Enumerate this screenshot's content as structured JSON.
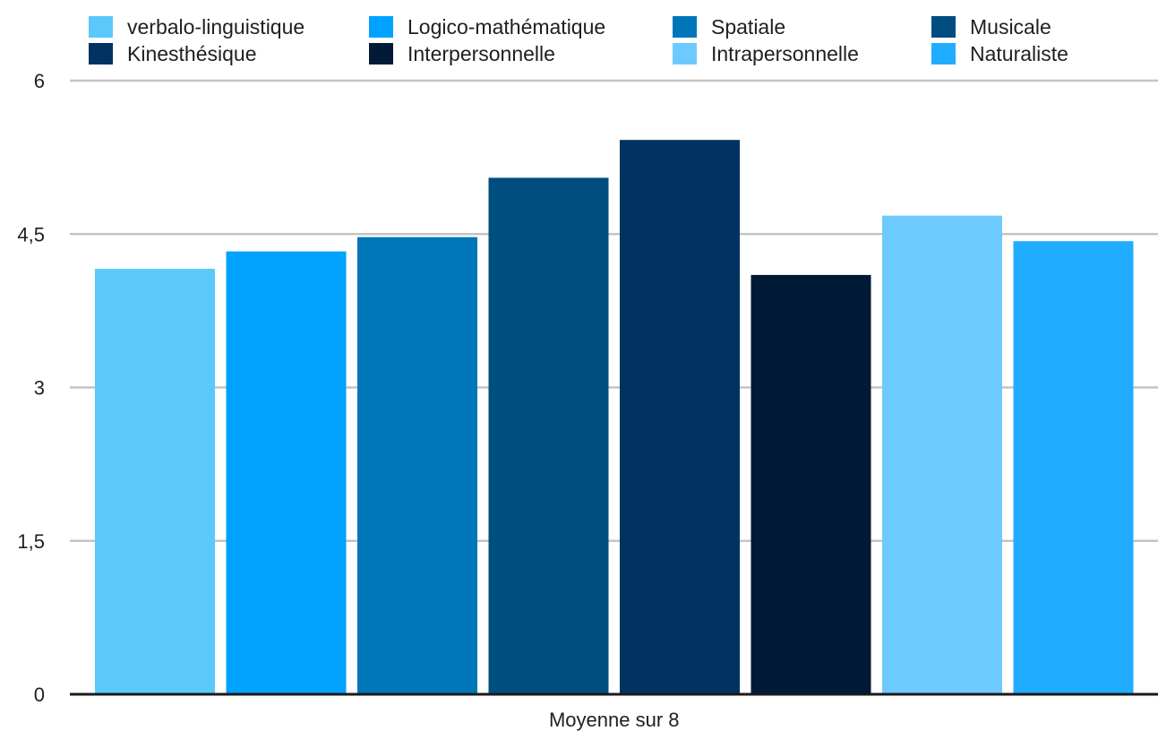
{
  "chart_data": {
    "type": "bar",
    "categories": [
      "Moyenne sur 8"
    ],
    "series": [
      {
        "name": "verbalo-linguistique",
        "values": [
          4.16
        ],
        "color": "#5AC8FA"
      },
      {
        "name": "Logico-mathématique",
        "values": [
          4.33
        ],
        "color": "#00A2FF"
      },
      {
        "name": "Spatiale",
        "values": [
          4.47
        ],
        "color": "#0076BA"
      },
      {
        "name": "Musicale",
        "values": [
          5.05
        ],
        "color": "#004D80"
      },
      {
        "name": "Kinesthésique",
        "values": [
          5.42
        ],
        "color": "#003360"
      },
      {
        "name": "Interpersonnelle",
        "values": [
          4.1
        ],
        "color": "#001A38"
      },
      {
        "name": "Intrapersonnelle",
        "values": [
          4.68
        ],
        "color": "#6DCAFF"
      },
      {
        "name": "Naturaliste",
        "values": [
          4.43
        ],
        "color": "#21ADFF"
      }
    ],
    "ylim": [
      0,
      6
    ],
    "yticks": [
      {
        "value": 0,
        "label": "0"
      },
      {
        "value": 1.5,
        "label": "1,5"
      },
      {
        "value": 3,
        "label": "3"
      },
      {
        "value": 4.5,
        "label": "4,5"
      },
      {
        "value": 6,
        "label": "6"
      }
    ],
    "grid": true,
    "legend": "top"
  }
}
